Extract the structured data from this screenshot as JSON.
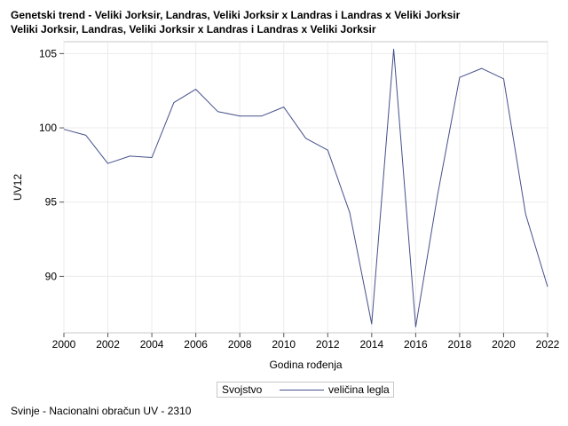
{
  "chart_data": {
    "type": "line",
    "title": "Genetski trend - Veliki Jorksir, Landras, Veliki Jorksir x Landras i Landras x Veliki Jorksir",
    "subtitle": "Veliki Jorksir, Landras, Veliki Jorksir x Landras i Landras x Veliki Jorksir",
    "xlabel": "Godina rođenja",
    "ylabel": "UV12",
    "xlim": [
      2000,
      2022
    ],
    "ylim": [
      86.2,
      105.8
    ],
    "x_ticks": [
      "2000",
      "2002",
      "2004",
      "2006",
      "2008",
      "2010",
      "2012",
      "2014",
      "2016",
      "2018",
      "2020",
      "2022"
    ],
    "y_ticks": [
      "90",
      "95",
      "100",
      "105"
    ],
    "grid": true,
    "legend_position": "bottom",
    "series": [
      {
        "name": "veličina legla",
        "color": "#44508a",
        "x": [
          2000,
          2001,
          2002,
          2003,
          2004,
          2005,
          2006,
          2007,
          2008,
          2009,
          2010,
          2011,
          2012,
          2013,
          2014,
          2015,
          2016,
          2017,
          2018,
          2019,
          2020,
          2021,
          2022
        ],
        "values": [
          99.9,
          99.5,
          97.6,
          98.1,
          98.0,
          101.7,
          102.6,
          101.1,
          100.8,
          100.8,
          101.4,
          99.3,
          98.5,
          94.3,
          86.8,
          105.3,
          86.6,
          95.5,
          103.4,
          104.0,
          103.3,
          94.2,
          89.3
        ]
      }
    ]
  },
  "legend": {
    "title": "Svojstvo",
    "label": "veličina legla"
  },
  "footnote": "Svinje - Nacionalni obračun UV - 2310"
}
